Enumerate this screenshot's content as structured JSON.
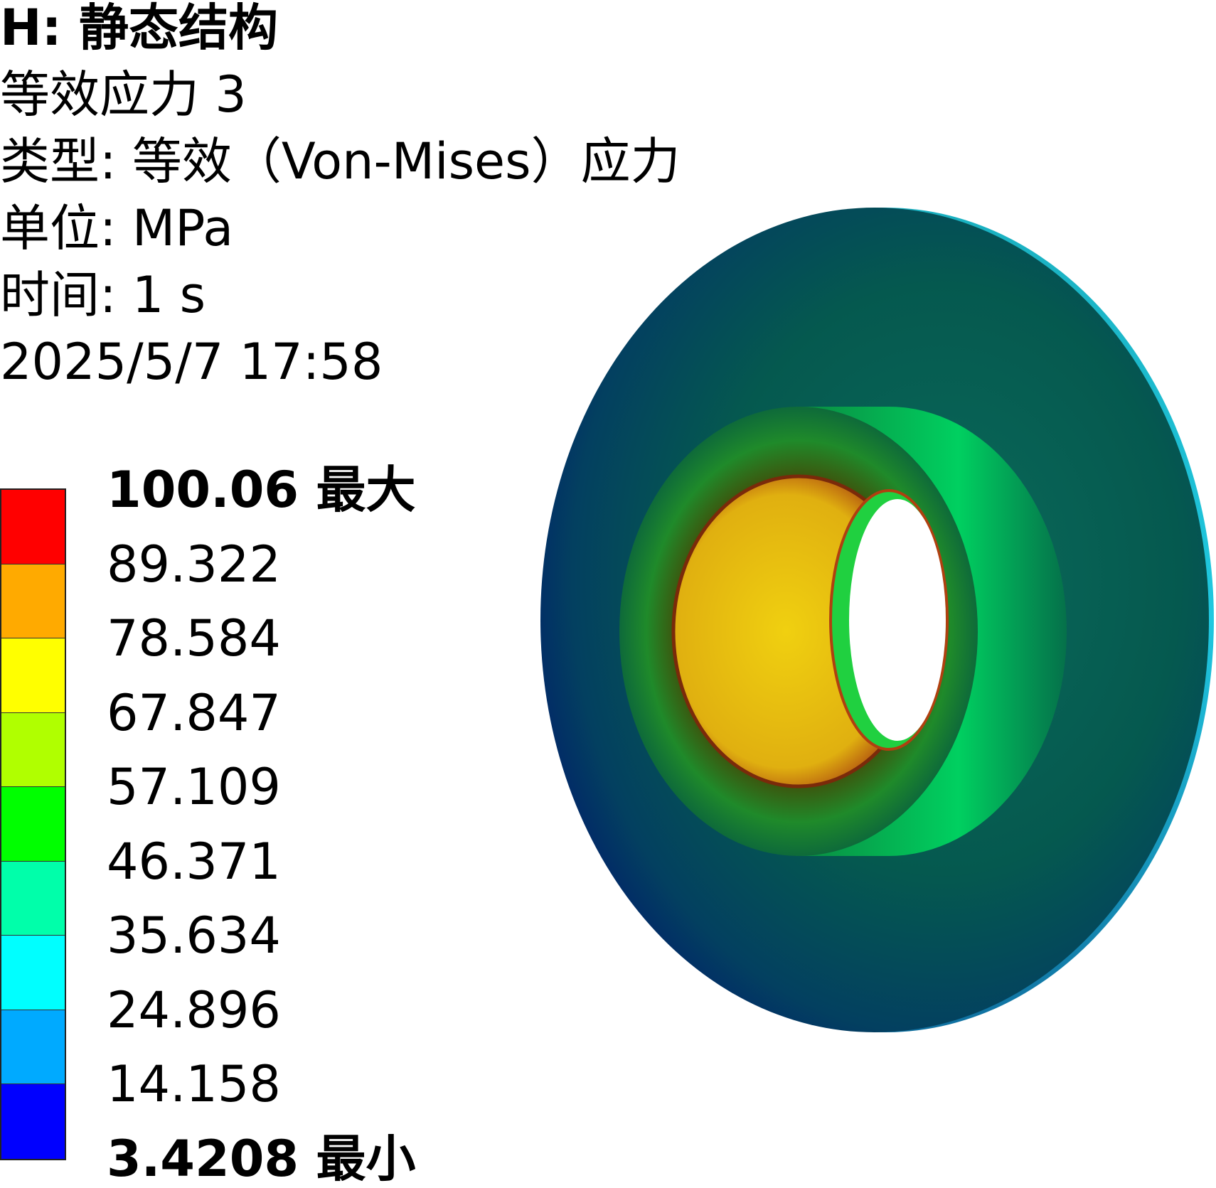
{
  "header": {
    "title": "H: 静态结构",
    "result_name": "等效应力 3",
    "type": "类型: 等效（Von-Mises）应力",
    "unit": "单位: MPa",
    "time": "时间: 1 s",
    "date": "2025/5/7 17:58"
  },
  "legend": {
    "labels": [
      "100.06 最大",
      "89.322",
      "78.584",
      "67.847",
      "57.109",
      "46.371",
      "35.634",
      "24.896",
      "14.158",
      "3.4208 最小"
    ],
    "colors": [
      "#ff0000",
      "#ffaa00",
      "#ffff00",
      "#b0ff00",
      "#00ff00",
      "#00ffaa",
      "#00ffff",
      "#00aaff",
      "#0000ff"
    ]
  }
}
